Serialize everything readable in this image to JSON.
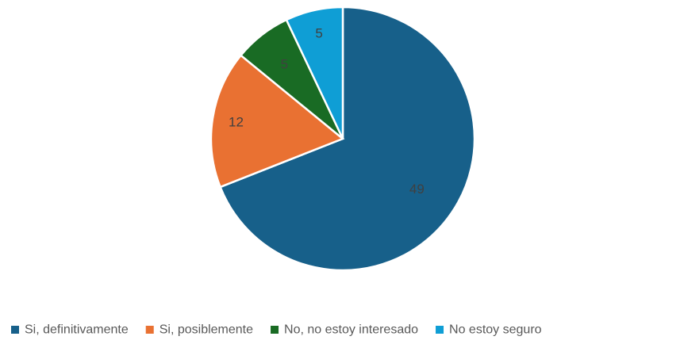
{
  "chart_data": {
    "type": "pie",
    "categories": [
      "Si, definitivamente",
      "Si, posiblemente",
      "No, no estoy interesado",
      "No estoy seguro"
    ],
    "values": [
      49,
      12,
      5,
      5
    ],
    "colors": [
      "#17608A",
      "#E97132",
      "#196B24",
      "#0F9ED5"
    ],
    "data_labels": [
      "49",
      "12",
      "5",
      "5"
    ],
    "start_angle_deg": 0,
    "direction": "clockwise",
    "legend_position": "bottom"
  }
}
